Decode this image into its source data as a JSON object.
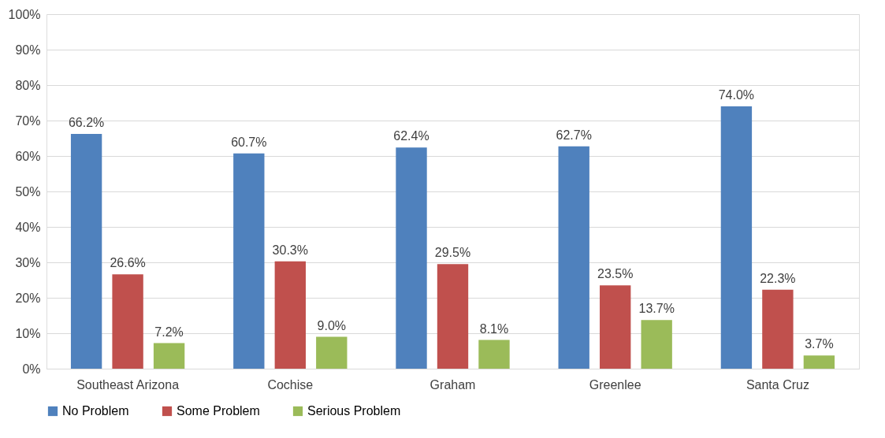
{
  "chart_data": {
    "type": "bar",
    "categories": [
      "Southeast Arizona",
      "Cochise",
      "Graham",
      "Greenlee",
      "Santa Cruz"
    ],
    "series": [
      {
        "name": "No Problem",
        "color": "#4f81bd",
        "values": [
          66.2,
          60.7,
          62.4,
          62.7,
          74.0
        ],
        "value_labels": [
          "66.2%",
          "60.7%",
          "62.4%",
          "62.7%",
          "74.0%"
        ]
      },
      {
        "name": "Some Problem",
        "color": "#c0504d",
        "values": [
          26.6,
          30.3,
          29.5,
          23.5,
          22.3
        ],
        "value_labels": [
          "26.6%",
          "30.3%",
          "29.5%",
          "23.5%",
          "22.3%"
        ]
      },
      {
        "name": "Serious Problem",
        "color": "#9bbb59",
        "values": [
          7.2,
          9.0,
          8.1,
          13.7,
          3.7
        ],
        "value_labels": [
          "7.2%",
          "9.0%",
          "8.1%",
          "13.7%",
          "3.7%"
        ]
      }
    ],
    "ylim": [
      0,
      100
    ],
    "yticks": [
      {
        "value": 0,
        "label": "0%"
      },
      {
        "value": 10,
        "label": "10%"
      },
      {
        "value": 20,
        "label": "20%"
      },
      {
        "value": 30,
        "label": "30%"
      },
      {
        "value": 40,
        "label": "40%"
      },
      {
        "value": 50,
        "label": "50%"
      },
      {
        "value": 60,
        "label": "60%"
      },
      {
        "value": 70,
        "label": "70%"
      },
      {
        "value": 80,
        "label": "80%"
      },
      {
        "value": 90,
        "label": "90%"
      },
      {
        "value": 100,
        "label": "100%"
      }
    ],
    "grid": "y",
    "legend": "bottom"
  }
}
